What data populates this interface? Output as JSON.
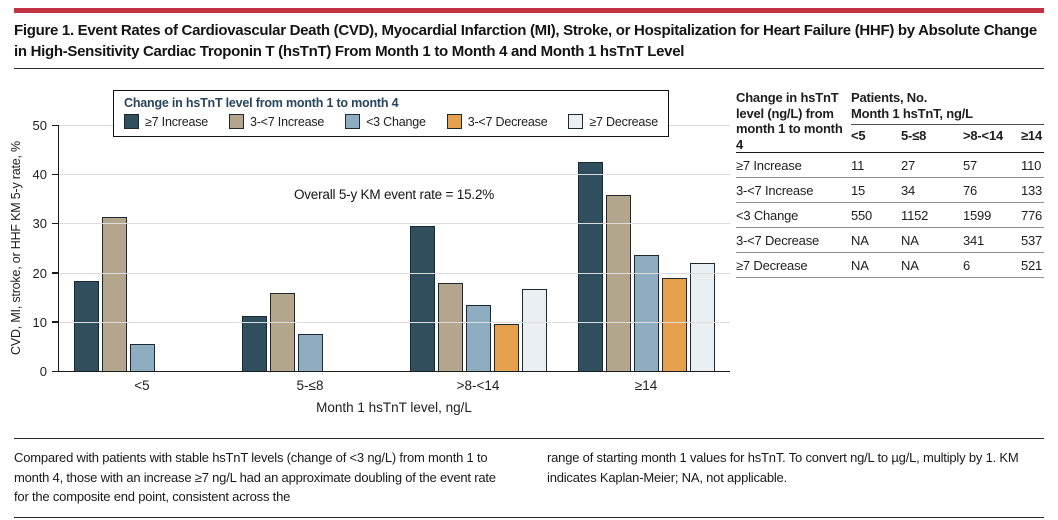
{
  "figure": {
    "title": "Figure 1. Event Rates of Cardiovascular Death (CVD), Myocardial Infarction (MI), Stroke, or Hospitalization for Heart Failure (HHF) by Absolute Change in High-Sensitivity Cardiac Troponin T (hsTnT) From Month 1 to Month 4 and Month 1 hsTnT Level"
  },
  "colors": {
    "accent_red": "#c23243",
    "grid": "#dcdcdc",
    "axis": "#1a1a1a",
    "bar_border": "#1d2930",
    "legend_title": "#27455c"
  },
  "chart_data": {
    "type": "bar",
    "categories": [
      "<5",
      "5-≤8",
      ">8-<14",
      "≥14"
    ],
    "series": [
      {
        "name": "≥7 Increase",
        "color": "#2f4e5e",
        "values": [
          18.2,
          11.2,
          29.4,
          42.5
        ]
      },
      {
        "name": "3-<7 Increase",
        "color": "#b4a68c",
        "values": [
          31.4,
          15.9,
          17.9,
          35.8
        ]
      },
      {
        "name": "<3 Change",
        "color": "#8fadc1",
        "values": [
          5.4,
          7.6,
          13.4,
          23.5
        ]
      },
      {
        "name": "3-<7 Decrease",
        "color": "#e6a14f",
        "values": [
          null,
          null,
          9.6,
          19.0
        ]
      },
      {
        "name": "≥7 Decrease",
        "color": "#e9eff3",
        "values": [
          null,
          null,
          16.7,
          22.0
        ]
      }
    ],
    "legend_title": "Change in hsTnT level from month 1 to month 4",
    "legend_position": "top",
    "annotation": "Overall 5-y KM event rate = 15.2%",
    "xlabel": "Month 1 hsTnT level, ng/L",
    "ylabel": "CVD, MI, stroke, or HHF KM 5-y rate, %",
    "ylim": [
      0,
      50
    ],
    "yticks": [
      0,
      10,
      20,
      30,
      40,
      50
    ],
    "grid": true
  },
  "table": {
    "col1_header": "Change in hsTnT level (ng/L) from month 1 to month 4",
    "group_header_line1": "Patients, No.",
    "group_header_line2": "Month 1 hsTnT, ng/L",
    "columns": [
      "<5",
      "5-≤8",
      ">8-<14",
      "≥14"
    ],
    "rows": [
      {
        "label": "≥7 Increase",
        "values": [
          "11",
          "27",
          "57",
          "110"
        ]
      },
      {
        "label": "3-<7 Increase",
        "values": [
          "15",
          "34",
          "76",
          "133"
        ]
      },
      {
        "label": "<3 Change",
        "values": [
          "550",
          "1152",
          "1599",
          "776"
        ]
      },
      {
        "label": "3-<7 Decrease",
        "values": [
          "NA",
          "NA",
          "341",
          "537"
        ]
      },
      {
        "label": "≥7 Decrease",
        "values": [
          "NA",
          "NA",
          "6",
          "521"
        ]
      }
    ]
  },
  "caption": {
    "left": "Compared with patients with stable hsTnT levels (change of <3 ng/L) from month 1 to month 4, those with an increase ≥7 ng/L had an approximate doubling of the event rate for the composite end point, consistent across the",
    "right": "range of starting month 1 values for hsTnT. To convert ng/L to µg/L, multiply by 1. KM indicates Kaplan-Meier; NA, not applicable."
  }
}
